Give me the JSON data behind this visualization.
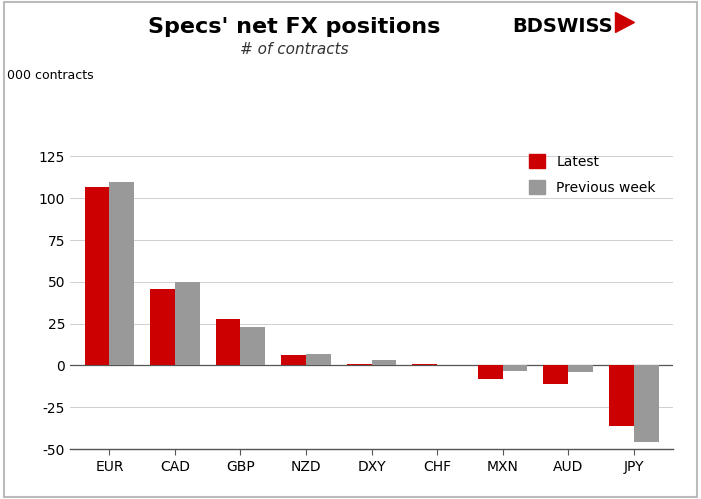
{
  "title": "Specs' net FX positions",
  "subtitle": "# of contracts",
  "ylabel": "000 contracts",
  "categories": [
    "EUR",
    "CAD",
    "GBP",
    "NZD",
    "DXY",
    "CHF",
    "MXN",
    "AUD",
    "JPY"
  ],
  "latest": [
    107,
    46,
    28,
    6,
    1,
    1,
    -8,
    -11,
    -36
  ],
  "previous_week": [
    110,
    50,
    23,
    7,
    3,
    0.5,
    -3,
    -4,
    -46
  ],
  "latest_color": "#cc0000",
  "previous_color": "#999999",
  "ylim": [
    -50,
    135
  ],
  "yticks": [
    -50,
    -25,
    0,
    25,
    50,
    75,
    100,
    125
  ],
  "legend_latest": "Latest",
  "legend_previous": "Previous week",
  "bar_width": 0.38,
  "background_color": "#ffffff",
  "title_fontsize": 16,
  "subtitle_fontsize": 11,
  "tick_fontsize": 10,
  "bdswiss_text": "BDSWISS",
  "logo_triangle_color": "#cc0000"
}
